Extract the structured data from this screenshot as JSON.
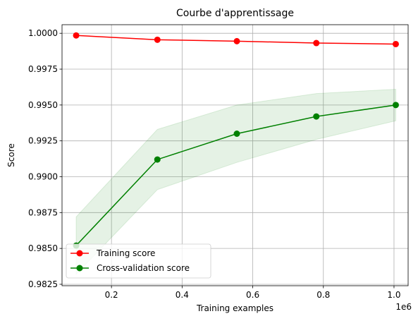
{
  "chart_data": {
    "type": "line",
    "title": "Courbe d'apprentissage",
    "xlabel": "Training examples",
    "ylabel": "Score",
    "x_offset_label": "1e6",
    "xlim": [
      0.06,
      1.04
    ],
    "ylim": [
      0.9824,
      1.0006
    ],
    "x_ticks": [
      0.2,
      0.4,
      0.6,
      0.8,
      1.0
    ],
    "x_tick_labels": [
      "0.2",
      "0.4",
      "0.6",
      "0.8",
      "1.0"
    ],
    "y_ticks": [
      0.9825,
      0.985,
      0.9875,
      0.99,
      0.9925,
      0.995,
      0.9975,
      1.0
    ],
    "y_tick_labels": [
      "0.9825",
      "0.9850",
      "0.9875",
      "0.9900",
      "0.9925",
      "0.9950",
      "0.9975",
      "1.0000"
    ],
    "grid": true,
    "legend_position": "lower-left",
    "x": [
      0.1,
      0.33,
      0.555,
      0.78,
      1.005
    ],
    "series": [
      {
        "name": "Training score",
        "color": "#ff0000",
        "values": [
          0.99985,
          0.99955,
          0.99945,
          0.99932,
          0.99925
        ],
        "band_lower": [
          0.99985,
          0.99955,
          0.99945,
          0.99932,
          0.99925
        ],
        "band_upper": [
          0.99985,
          0.99955,
          0.99945,
          0.99932,
          0.99925
        ]
      },
      {
        "name": "Cross-validation score",
        "color": "#008000",
        "band_color": "#008000",
        "values": [
          0.9852,
          0.9912,
          0.993,
          0.9942,
          0.995
        ],
        "band_lower": [
          0.9832,
          0.9891,
          0.991,
          0.9926,
          0.9939
        ],
        "band_upper": [
          0.9872,
          0.9933,
          0.995,
          0.9958,
          0.9961
        ]
      }
    ]
  }
}
